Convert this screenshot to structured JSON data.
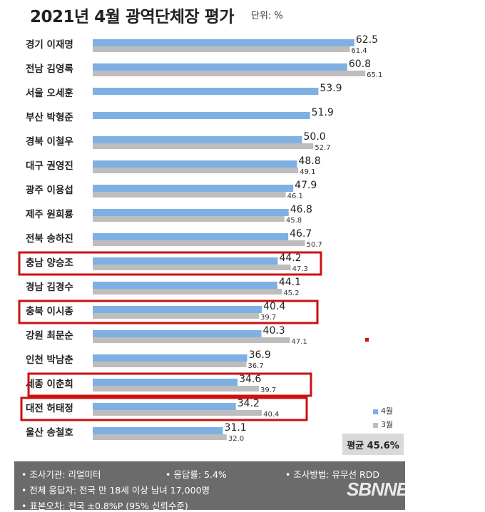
{
  "header": {
    "title": "2021년 4월 광역단체장 평가",
    "unit": "단위: %"
  },
  "legend": {
    "apr": "4월",
    "mar": "3월"
  },
  "average": "평균 45.6%",
  "footer": {
    "agency": "• 조사기관: 리얼미터",
    "response_rate": "• 응답률: 5.4%",
    "method": "• 조사방법: 유무선 RDD",
    "respondents": "• 전체 응답자: 전국 만 18세 이상 남녀 17,000명",
    "error": "• 표본오차: 전국 ±0.8%P (95% 신뢰수준)"
  },
  "brand": "SBNNEWS",
  "colors": {
    "apr": "#7fb0e3",
    "mar": "#bdbdbd",
    "highlight": "#cc1111"
  },
  "chart_data": {
    "type": "bar",
    "orientation": "horizontal",
    "title": "2021년 4월 광역단체장 평가",
    "categories": [
      "경기 이재명",
      "전남 김영록",
      "서울 오세훈",
      "부산 박형준",
      "경북 이철우",
      "대구 권영진",
      "광주 이용섭",
      "제주 원희룡",
      "전북 송하진",
      "충남 양승조",
      "경남 김경수",
      "충북 이시종",
      "강원 최문순",
      "인천 박남춘",
      "세종 이춘희",
      "대전 허태정",
      "울산 송철호"
    ],
    "series": [
      {
        "name": "4월",
        "values": [
          62.5,
          60.8,
          53.9,
          51.9,
          50.0,
          48.8,
          47.9,
          46.8,
          46.7,
          44.2,
          44.1,
          40.4,
          40.3,
          36.9,
          34.6,
          34.2,
          31.1
        ]
      },
      {
        "name": "3월",
        "values": [
          61.4,
          65.1,
          null,
          null,
          52.7,
          49.1,
          46.1,
          45.8,
          50.7,
          47.3,
          45.2,
          39.7,
          47.1,
          36.7,
          39.7,
          40.4,
          32.0
        ]
      }
    ],
    "value_labels": {
      "apr": [
        "62.5",
        "60.8",
        "53.9",
        "51.9",
        "50.0",
        "48.8",
        "47.9",
        "46.8",
        "46.7",
        "44.2",
        "44.1",
        "40.4",
        "40.3",
        "36.9",
        "34.6",
        "34.2",
        "31.1"
      ],
      "mar": [
        "61.4",
        "65.1",
        "",
        "",
        "52.7",
        "49.1",
        "46.1",
        "45.8",
        "50.7",
        "47.3",
        "45.2",
        "39.7",
        "47.1",
        "36.7",
        "39.7",
        "40.4",
        "32.0"
      ]
    },
    "highlighted": [
      "충남 양승조",
      "충북 이시종",
      "세종 이춘희",
      "대전 허태정"
    ],
    "legend_position": "right"
  }
}
